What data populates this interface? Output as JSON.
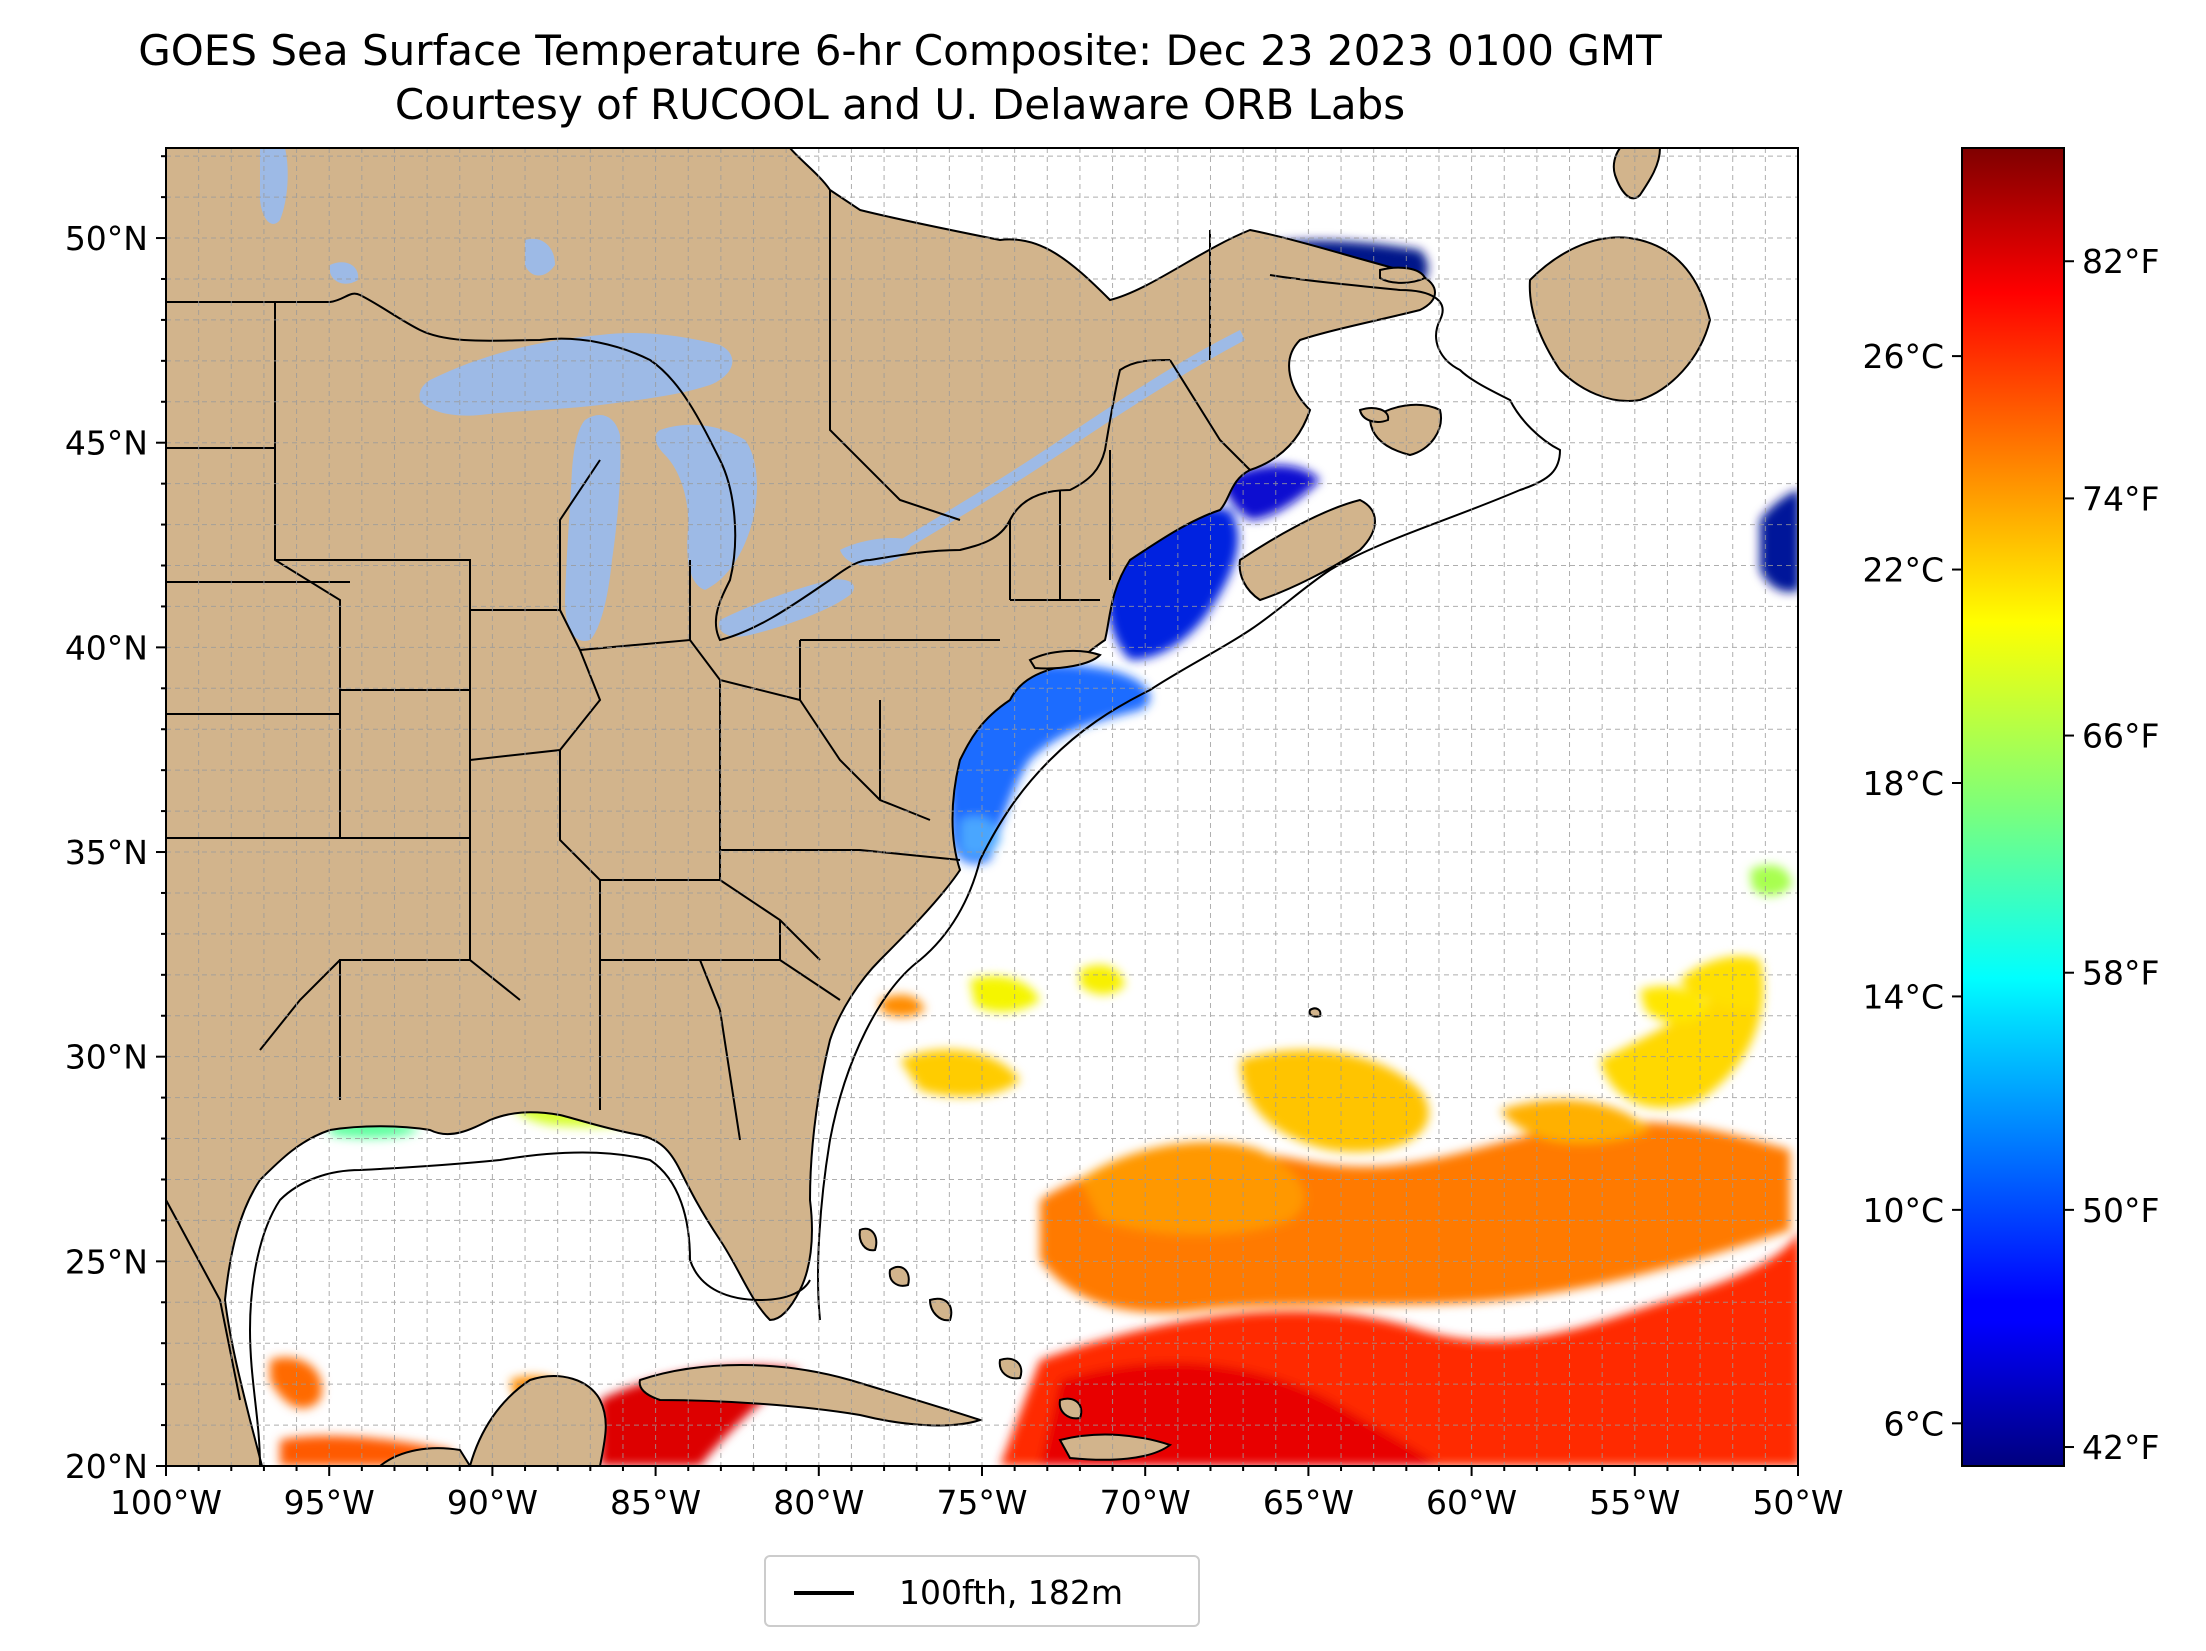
{
  "title": "GOES Sea Surface Temperature 6-hr Composite: Dec 23 2023 0100 GMT",
  "subtitle": "Courtesy of RUCOOL and U. Delaware ORB Labs",
  "map": {
    "lon_range": [
      -100,
      -50
    ],
    "lat_range": [
      20,
      52.2
    ],
    "x_ticks": [
      {
        "lon": -100,
        "label": "100°W"
      },
      {
        "lon": -95,
        "label": "95°W"
      },
      {
        "lon": -90,
        "label": "90°W"
      },
      {
        "lon": -85,
        "label": "85°W"
      },
      {
        "lon": -80,
        "label": "80°W"
      },
      {
        "lon": -75,
        "label": "75°W"
      },
      {
        "lon": -70,
        "label": "70°W"
      },
      {
        "lon": -65,
        "label": "65°W"
      },
      {
        "lon": -60,
        "label": "60°W"
      },
      {
        "lon": -55,
        "label": "55°W"
      },
      {
        "lon": -50,
        "label": "50°W"
      }
    ],
    "y_ticks": [
      {
        "lat": 20,
        "label": "20°N"
      },
      {
        "lat": 25,
        "label": "25°N"
      },
      {
        "lat": 30,
        "label": "30°N"
      },
      {
        "lat": 35,
        "label": "35°N"
      },
      {
        "lat": 40,
        "label": "40°N"
      },
      {
        "lat": 45,
        "label": "45°N"
      },
      {
        "lat": 50,
        "label": "50°N"
      }
    ],
    "grid": true,
    "land_color": "#d2b48c",
    "lake_color": "#9dbae6"
  },
  "colorbar": {
    "colormap": "jet",
    "range_c": [
      5.2,
      29.9
    ],
    "celsius_ticks": [
      {
        "value": 6,
        "label": "6°C"
      },
      {
        "value": 10,
        "label": "10°C"
      },
      {
        "value": 14,
        "label": "14°C"
      },
      {
        "value": 18,
        "label": "18°C"
      },
      {
        "value": 22,
        "label": "22°C"
      },
      {
        "value": 26,
        "label": "26°C"
      }
    ],
    "fahrenheit_ticks": [
      {
        "value": 42,
        "label": "42°F"
      },
      {
        "value": 50,
        "label": "50°F"
      },
      {
        "value": 58,
        "label": "58°F"
      },
      {
        "value": 66,
        "label": "66°F"
      },
      {
        "value": 74,
        "label": "74°F"
      },
      {
        "value": 82,
        "label": "82°F"
      }
    ]
  },
  "legend": {
    "label": "100fth, 182m"
  }
}
